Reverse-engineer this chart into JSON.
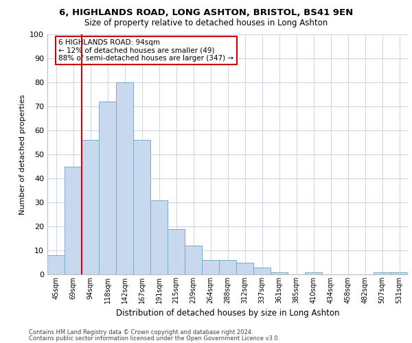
{
  "title1": "6, HIGHLANDS ROAD, LONG ASHTON, BRISTOL, BS41 9EN",
  "title2": "Size of property relative to detached houses in Long Ashton",
  "xlabel": "Distribution of detached houses by size in Long Ashton",
  "ylabel": "Number of detached properties",
  "categories": [
    "45sqm",
    "69sqm",
    "94sqm",
    "118sqm",
    "142sqm",
    "167sqm",
    "191sqm",
    "215sqm",
    "239sqm",
    "264sqm",
    "288sqm",
    "312sqm",
    "337sqm",
    "361sqm",
    "385sqm",
    "410sqm",
    "434sqm",
    "458sqm",
    "482sqm",
    "507sqm",
    "531sqm"
  ],
  "values": [
    8,
    45,
    56,
    72,
    80,
    56,
    31,
    19,
    12,
    6,
    6,
    5,
    3,
    1,
    0,
    1,
    0,
    0,
    0,
    1,
    1
  ],
  "bar_color": "#c8d8ee",
  "bar_edge_color": "#7aaaca",
  "redline_index": 2,
  "annotation_text": "6 HIGHLANDS ROAD: 94sqm\n← 12% of detached houses are smaller (49)\n88% of semi-detached houses are larger (347) →",
  "annotation_box_color": "#ffffff",
  "annotation_box_edge_color": "#cc0000",
  "grid_color": "#ccd8e8",
  "background_color": "#ffffff",
  "footer1": "Contains HM Land Registry data © Crown copyright and database right 2024.",
  "footer2": "Contains public sector information licensed under the Open Government Licence v3.0.",
  "ylim": [
    0,
    100
  ],
  "yticks": [
    0,
    10,
    20,
    30,
    40,
    50,
    60,
    70,
    80,
    90,
    100
  ]
}
